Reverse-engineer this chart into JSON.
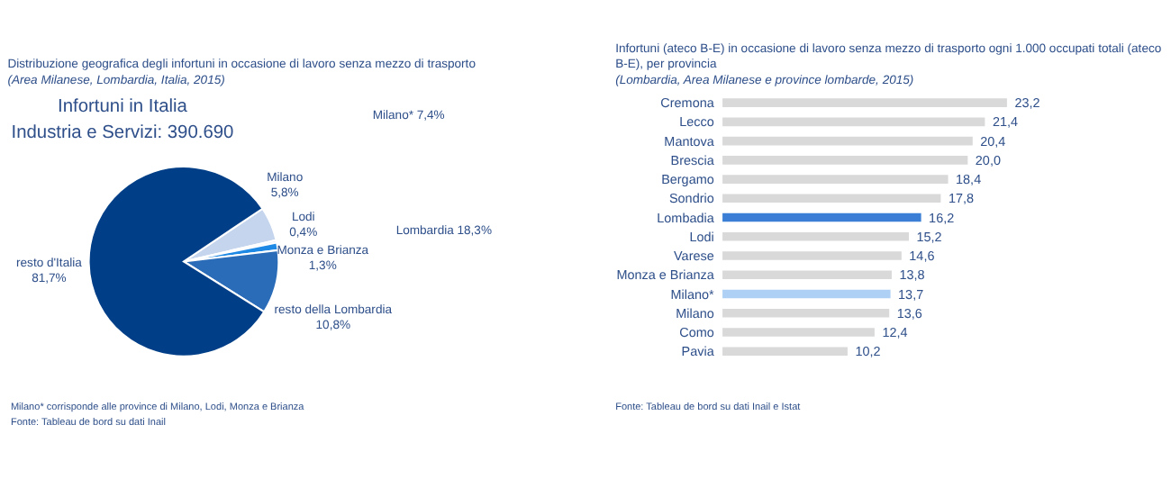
{
  "chart_data": [
    {
      "type": "pie",
      "title": "Distribuzione geografica degli infortuni in occasione di lavoro senza mezzo di trasporto",
      "subtitle": "(Area Milanese, Lombardia, Italia, 2015)",
      "categories": [
        "Milano",
        "Lodi",
        "Monza e Brianza",
        "resto della Lombardia",
        "resto d'Italia"
      ],
      "values": [
        5.8,
        0.4,
        1.3,
        10.8,
        81.7
      ],
      "value_labels": [
        "5,8%",
        "0,4%",
        "1,3%",
        "10,8%",
        "81,7%"
      ],
      "colors": [
        "#c5d5ee",
        "#e3ebf7",
        "#1e88e5",
        "#2b6cb8",
        "#003f87"
      ],
      "annotations": [
        "Infortuni in Italia",
        "Industria e Servizi: 390.690",
        "Milano* 7,4%",
        "Lombardia 18,3%",
        "Milano* corrisponde alle province di Milano, Lodi, Monza e Brianza",
        "Fonte: Tableau de bord su dati Inail"
      ]
    },
    {
      "type": "bar",
      "orientation": "horizontal",
      "title": "Infortuni (ateco B-E) in occasione di lavoro senza mezzo di trasporto ogni 1.000 occupati totali (ateco B-E), per provincia",
      "subtitle": "(Lombardia, Area Milanese e province lombarde, 2015)",
      "categories": [
        "Cremona",
        "Lecco",
        "Mantova",
        "Brescia",
        "Bergamo",
        "Sondrio",
        "Lombadia",
        "Lodi",
        "Varese",
        "Monza e Brianza",
        "Milano*",
        "Milano",
        "Como",
        "Pavia"
      ],
      "values": [
        23.2,
        21.4,
        20.4,
        20.0,
        18.4,
        17.8,
        16.2,
        15.2,
        14.6,
        13.8,
        13.7,
        13.6,
        12.4,
        10.2
      ],
      "value_labels": [
        "23,2",
        "21,4",
        "20,4",
        "20,0",
        "18,4",
        "17,8",
        "16,2",
        "15,2",
        "14,6",
        "13,8",
        "13,7",
        "13,6",
        "12,4",
        "10,2"
      ],
      "colors": [
        "#d9d9d9",
        "#d9d9d9",
        "#d9d9d9",
        "#d9d9d9",
        "#d9d9d9",
        "#d9d9d9",
        "#3a7fd5",
        "#d9d9d9",
        "#d9d9d9",
        "#d9d9d9",
        "#aed0f5",
        "#d9d9d9",
        "#d9d9d9",
        "#d9d9d9"
      ],
      "annotations": [
        "Fonte: Tableau de bord su dati Inail e Istat"
      ]
    }
  ]
}
